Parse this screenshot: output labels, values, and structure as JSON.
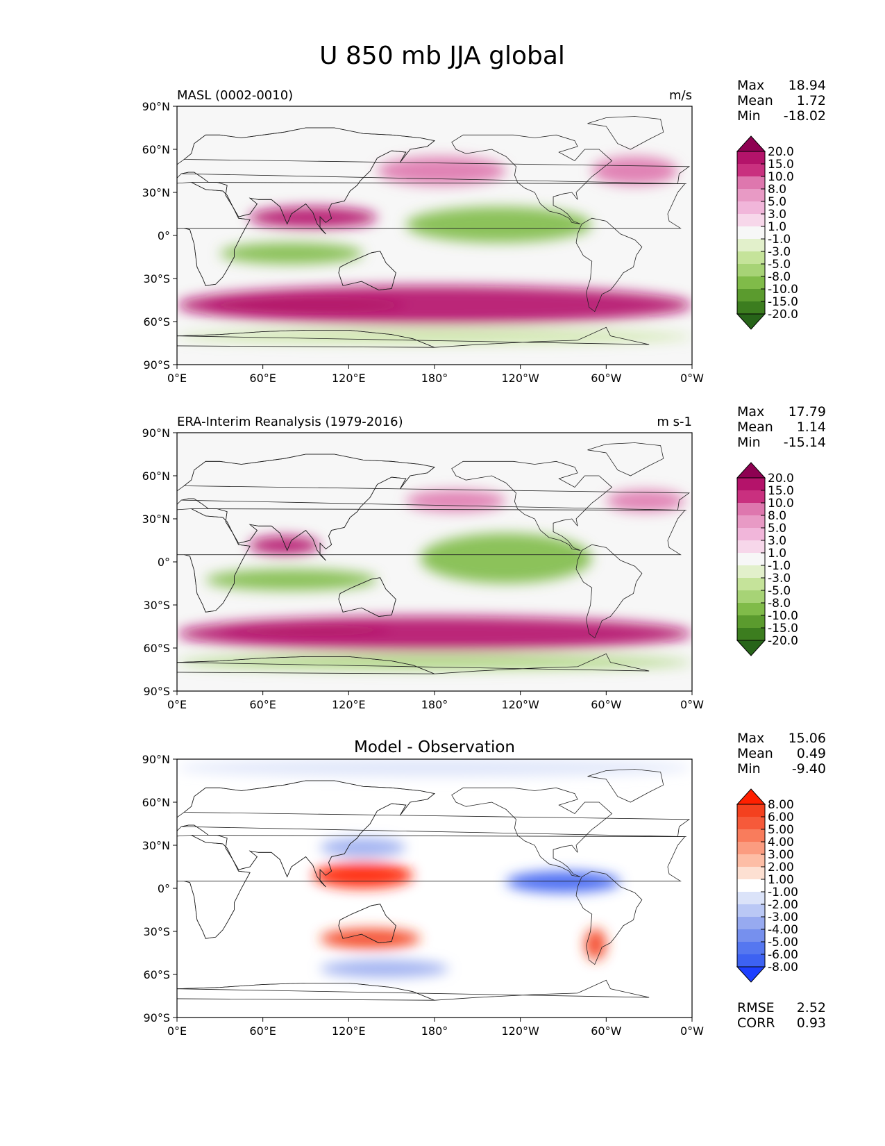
{
  "figure_title": "U 850 mb JJA global",
  "chart_data": [
    {
      "type": "heatmap",
      "subtitle_left": "MASL (0002-0010)",
      "subtitle_right": "m/s",
      "stats": [
        [
          "Max",
          "18.94"
        ],
        [
          "Mean",
          "1.72"
        ],
        [
          "Min",
          "-18.02"
        ]
      ],
      "colorbar_levels": [
        "20.0",
        "15.0",
        "10.0",
        "8.0",
        "5.0",
        "3.0",
        "1.0",
        "-1.0",
        "-3.0",
        "-5.0",
        "-8.0",
        "-10.0",
        "-15.0",
        "-20.0"
      ],
      "colorbar_colors": [
        "#8e0152",
        "#b4136a",
        "#c9307f",
        "#de77ae",
        "#e89ac5",
        "#f1b6da",
        "#f7d7ea",
        "#f7f7f7",
        "#e2f0cb",
        "#c5e39a",
        "#a7d376",
        "#80bb49",
        "#5b9b2e",
        "#3c7d1f",
        "#276419"
      ],
      "xticks": [
        "0°E",
        "60°E",
        "120°E",
        "180°",
        "120°W",
        "60°W",
        "0°W"
      ],
      "yticks": [
        "90°N",
        "60°N",
        "30°N",
        "0°",
        "30°S",
        "60°S",
        "90°S"
      ],
      "xlim": [
        0,
        360
      ],
      "ylim": [
        -90,
        90
      ],
      "features": [
        {
          "name": "southern-westerly-jet",
          "lon": [
            0,
            360
          ],
          "lat": [
            -62,
            -35
          ],
          "value": 15
        },
        {
          "name": "southern-jet-core",
          "lon": [
            20,
            160
          ],
          "lat": [
            -55,
            -42
          ],
          "value": 19
        },
        {
          "name": "asian-monsoon-westerlies",
          "lon": [
            50,
            140
          ],
          "lat": [
            5,
            20
          ],
          "value": 15
        },
        {
          "name": "north-pacific-westerlies",
          "lon": [
            140,
            230
          ],
          "lat": [
            35,
            55
          ],
          "value": 8
        },
        {
          "name": "north-atlantic-westerlies",
          "lon": [
            290,
            350
          ],
          "lat": [
            35,
            55
          ],
          "value": 8
        },
        {
          "name": "tropical-easterlies-pacific",
          "lon": [
            160,
            290
          ],
          "lat": [
            -5,
            20
          ],
          "value": -10
        },
        {
          "name": "tropical-easterlies-indian",
          "lon": [
            30,
            130
          ],
          "lat": [
            -20,
            -5
          ],
          "value": -10
        },
        {
          "name": "antarctic-easterlies",
          "lon": [
            0,
            360
          ],
          "lat": [
            -75,
            -66
          ],
          "value": -5
        }
      ]
    },
    {
      "type": "heatmap",
      "subtitle_left": "ERA-Interim Reanalysis (1979-2016)",
      "subtitle_right": "m s-1",
      "stats": [
        [
          "Max",
          "17.79"
        ],
        [
          "Mean",
          "1.14"
        ],
        [
          "Min",
          "-15.14"
        ]
      ],
      "colorbar_levels": [
        "20.0",
        "15.0",
        "10.0",
        "8.0",
        "5.0",
        "3.0",
        "1.0",
        "-1.0",
        "-3.0",
        "-5.0",
        "-8.0",
        "-10.0",
        "-15.0",
        "-20.0"
      ],
      "colorbar_colors": [
        "#8e0152",
        "#b4136a",
        "#c9307f",
        "#de77ae",
        "#e89ac5",
        "#f1b6da",
        "#f7d7ea",
        "#f7f7f7",
        "#e2f0cb",
        "#c5e39a",
        "#a7d376",
        "#80bb49",
        "#5b9b2e",
        "#3c7d1f",
        "#276419"
      ],
      "xticks": [
        "0°E",
        "60°E",
        "120°E",
        "180°",
        "120°W",
        "60°W",
        "0°W"
      ],
      "yticks": [
        "90°N",
        "60°N",
        "30°N",
        "0°",
        "30°S",
        "60°S",
        "90°S"
      ],
      "xlim": [
        0,
        360
      ],
      "ylim": [
        -90,
        90
      ],
      "features": [
        {
          "name": "southern-westerly-jet",
          "lon": [
            0,
            360
          ],
          "lat": [
            -62,
            -38
          ],
          "value": 15
        },
        {
          "name": "southern-jet-core",
          "lon": [
            30,
            150
          ],
          "lat": [
            -52,
            -42
          ],
          "value": 18
        },
        {
          "name": "asian-monsoon-westerlies",
          "lon": [
            50,
            100
          ],
          "lat": [
            5,
            18
          ],
          "value": 15
        },
        {
          "name": "north-pacific-westerlies",
          "lon": [
            160,
            230
          ],
          "lat": [
            35,
            50
          ],
          "value": 8
        },
        {
          "name": "north-atlantic-westerlies",
          "lon": [
            300,
            355
          ],
          "lat": [
            35,
            50
          ],
          "value": 8
        },
        {
          "name": "tropical-easterlies-pacific",
          "lon": [
            170,
            290
          ],
          "lat": [
            -15,
            20
          ],
          "value": -10
        },
        {
          "name": "tropical-easterlies-indian",
          "lon": [
            20,
            140
          ],
          "lat": [
            -20,
            -5
          ],
          "value": -10
        },
        {
          "name": "antarctic-easterlies",
          "lon": [
            0,
            360
          ],
          "lat": [
            -75,
            -65
          ],
          "value": -8
        }
      ]
    },
    {
      "type": "heatmap",
      "subtitle_center": "Model - Observation",
      "stats": [
        [
          "Max",
          "15.06"
        ],
        [
          "Mean",
          "0.49"
        ],
        [
          "Min",
          "-9.40"
        ]
      ],
      "extra_stats": [
        [
          "RMSE",
          "2.52"
        ],
        [
          "CORR",
          "0.93"
        ]
      ],
      "colorbar_levels": [
        "8.00",
        "6.00",
        "5.00",
        "4.00",
        "3.00",
        "2.00",
        "1.00",
        "-1.00",
        "-2.00",
        "-3.00",
        "-4.00",
        "-5.00",
        "-6.00",
        "-8.00"
      ],
      "colorbar_colors": [
        "#ff2000",
        "#f4411f",
        "#f65a3a",
        "#f97c5c",
        "#fb9c80",
        "#fdbda5",
        "#fde0d2",
        "#ffffff",
        "#dbe3f9",
        "#bac8f5",
        "#97aaf0",
        "#7690ee",
        "#5577f0",
        "#3d62f2",
        "#1e40ff"
      ],
      "xticks": [
        "0°E",
        "60°E",
        "120°E",
        "180°",
        "120°W",
        "60°W",
        "0°W"
      ],
      "yticks": [
        "90°N",
        "60°N",
        "30°N",
        "0°",
        "30°S",
        "60°S",
        "90°S"
      ],
      "xlim": [
        0,
        360
      ],
      "ylim": [
        -90,
        90
      ],
      "features": [
        {
          "name": "maritime-continent-positive",
          "lon": [
            95,
            165
          ],
          "lat": [
            0,
            18
          ],
          "value": 8
        },
        {
          "name": "australia-positive",
          "lon": [
            100,
            170
          ],
          "lat": [
            -42,
            -28
          ],
          "value": 6
        },
        {
          "name": "southern-ocean-negative",
          "lon": [
            100,
            190
          ],
          "lat": [
            -62,
            -50
          ],
          "value": -4
        },
        {
          "name": "east-pacific-negative",
          "lon": [
            230,
            310
          ],
          "lat": [
            -3,
            12
          ],
          "value": -8
        },
        {
          "name": "north-pacific-negative",
          "lon": [
            100,
            160
          ],
          "lat": [
            22,
            35
          ],
          "value": -4
        },
        {
          "name": "arctic-negative",
          "lon": [
            0,
            360
          ],
          "lat": [
            78,
            90
          ],
          "value": -2
        },
        {
          "name": "south-america-positive",
          "lon": [
            285,
            300
          ],
          "lat": [
            -50,
            -28
          ],
          "value": 6
        }
      ]
    }
  ]
}
